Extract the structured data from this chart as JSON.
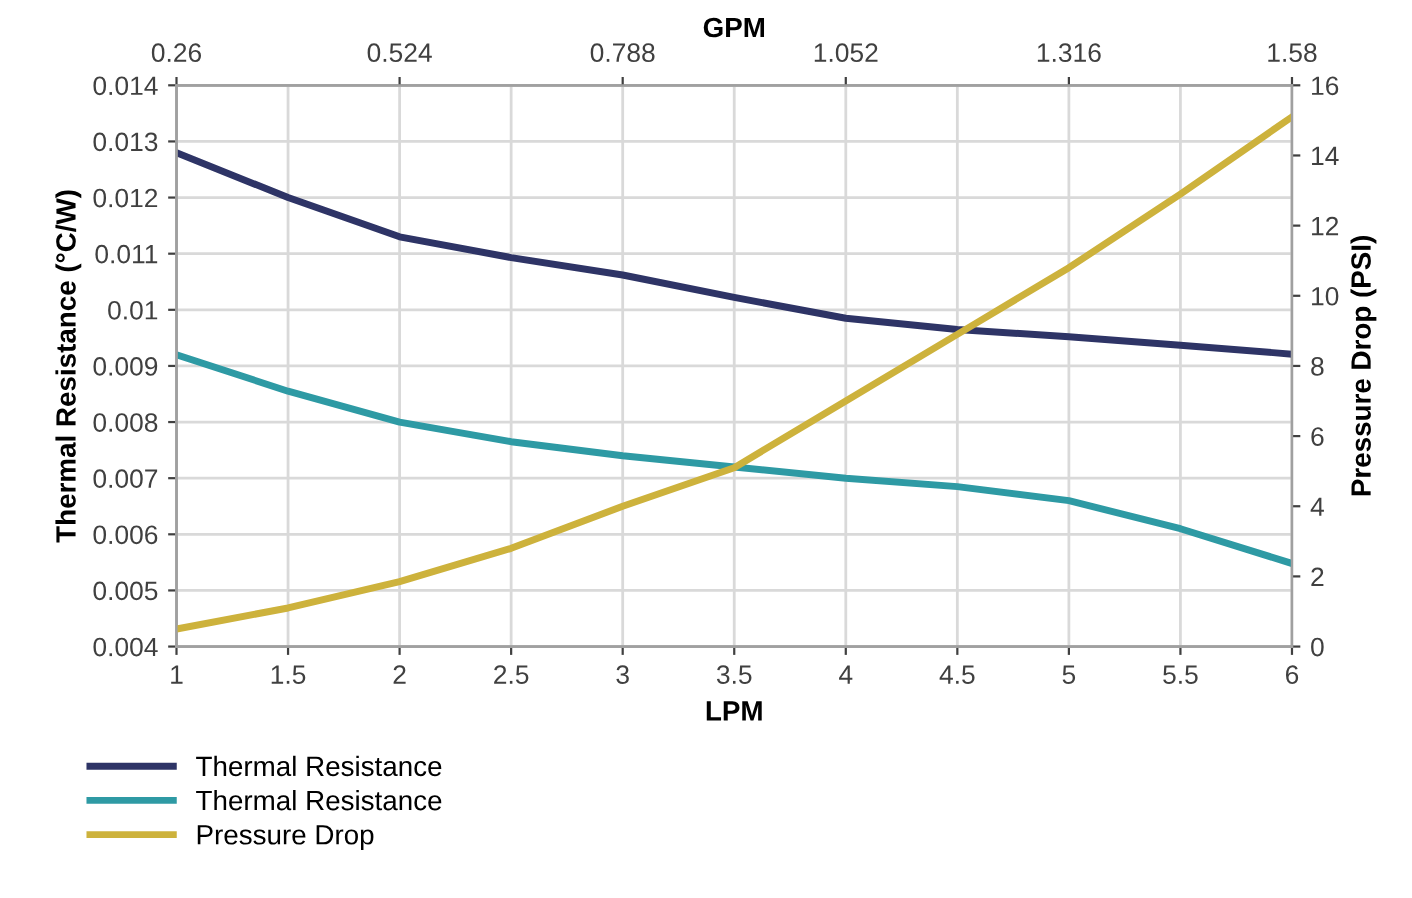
{
  "chart_data": {
    "type": "line",
    "xlabel": "LPM",
    "ylabel": "Thermal Resistance (°C/W)",
    "y2label": "Pressure Drop (PSI)",
    "x2label": "GPM",
    "x": [
      1,
      1.5,
      2,
      2.5,
      3,
      3.5,
      4,
      4.5,
      5,
      5.5,
      6
    ],
    "series": [
      {
        "name": "Thermal Resistance",
        "color": "#2e3466",
        "values": [
          0.0128,
          0.012,
          0.0113,
          0.01093,
          0.01062,
          0.01022,
          0.00985,
          0.00965,
          0.00952,
          0.00937,
          0.00921
        ]
      },
      {
        "name": "Thermal Resistance",
        "color": "#2e9aa4",
        "values": [
          0.0092,
          0.00855,
          0.008,
          0.00765,
          0.0074,
          0.0072,
          0.007,
          0.00685,
          0.0066,
          0.0061,
          0.00548
        ]
      },
      {
        "name": "Pressure Drop",
        "color": "#cdb23c",
        "axis": "y2",
        "values": [
          0.5,
          1.1,
          1.85,
          2.8,
          4.0,
          5.1,
          7.0,
          8.9,
          10.8,
          12.9,
          15.1
        ]
      }
    ],
    "xlim": [
      1,
      6
    ],
    "xticks": [
      1,
      1.5,
      2,
      2.5,
      3,
      3.5,
      4,
      4.5,
      5,
      5.5,
      6
    ],
    "x2lim": [
      0.26,
      1.58
    ],
    "x2ticks": [
      0.26,
      0.524,
      0.788,
      1.052,
      1.316,
      1.58
    ],
    "ylim": [
      0.004,
      0.014
    ],
    "yticks": [
      0.004,
      0.005,
      0.006,
      0.007,
      0.008,
      0.009,
      0.01,
      0.011,
      0.012,
      0.013,
      0.014
    ],
    "y2lim": [
      0,
      16
    ],
    "y2ticks": [
      0,
      2,
      4,
      6,
      8,
      10,
      12,
      14,
      16
    ],
    "grid": true,
    "legend": "bottom left",
    "marker": "none",
    "line_style": "solid"
  }
}
